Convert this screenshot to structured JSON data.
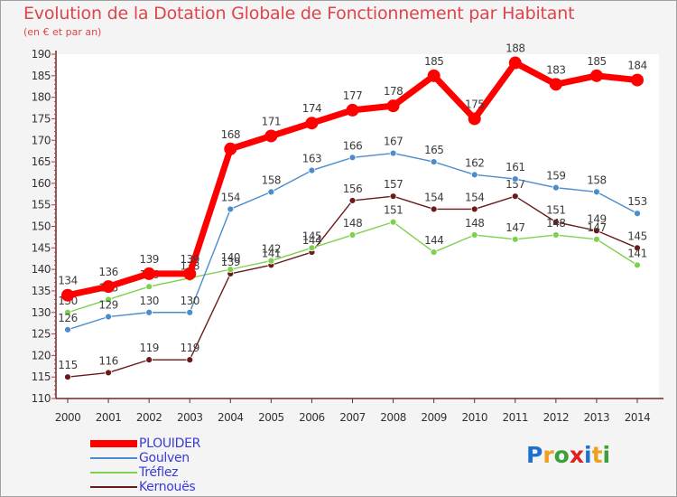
{
  "title": "Evolution de la Dotation Globale de Fonctionnement par Habitant",
  "subtitle": "(en € et par an)",
  "logo": {
    "letters": [
      "P",
      "r",
      "o",
      "x",
      "i",
      "t",
      "i"
    ],
    "colors": [
      "#1e6fd0",
      "#f0a020",
      "#3aa03a",
      "#e02020",
      "#1e6fd0",
      "#f0a020",
      "#3aa03a"
    ]
  },
  "chart_data": {
    "type": "line",
    "title": "Evolution de la Dotation Globale de Fonctionnement par Habitant",
    "subtitle": "(en € et par an)",
    "xlabel": "",
    "ylabel": "",
    "x": [
      "2000",
      "2001",
      "2002",
      "2003",
      "2004",
      "2005",
      "2006",
      "2007",
      "2008",
      "2009",
      "2010",
      "2011",
      "2012",
      "2013",
      "2014"
    ],
    "ylim": [
      110,
      190
    ],
    "yticks": [
      110,
      115,
      120,
      125,
      130,
      135,
      140,
      145,
      150,
      155,
      160,
      165,
      170,
      175,
      180,
      185,
      190
    ],
    "grid": false,
    "legend_position": "bottom-left",
    "series": [
      {
        "name": "Kernouës",
        "color": "#6a1a1a",
        "values": [
          115,
          116,
          119,
          119,
          139,
          141,
          144,
          156,
          157,
          154,
          154,
          157,
          151,
          149,
          145
        ]
      },
      {
        "name": "Tréflez",
        "color": "#7ed14e",
        "values": [
          130,
          133,
          136,
          138,
          140,
          142,
          145,
          148,
          151,
          144,
          148,
          147,
          148,
          147,
          141
        ]
      },
      {
        "name": "Goulven",
        "color": "#4a8ccc",
        "values": [
          126,
          129,
          130,
          130,
          154,
          158,
          163,
          166,
          167,
          165,
          162,
          161,
          159,
          158,
          153
        ]
      },
      {
        "name": "PLOUIDER",
        "color": "#ff0000",
        "values": [
          134,
          136,
          139,
          139,
          168,
          171,
          174,
          177,
          178,
          185,
          175,
          188,
          183,
          185,
          184
        ]
      }
    ],
    "legend": [
      "PLOUIDER",
      "Goulven",
      "Tréflez",
      "Kernouës"
    ]
  }
}
